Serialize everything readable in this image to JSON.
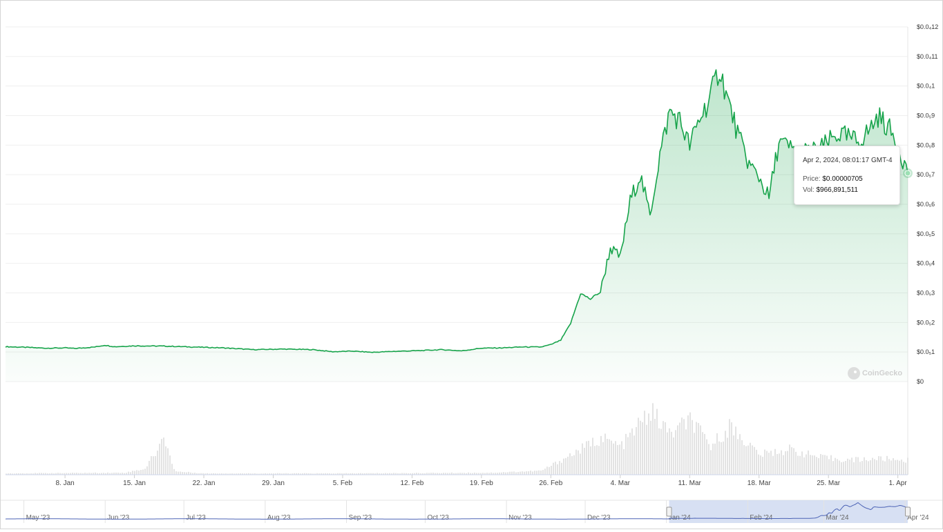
{
  "chart_data": {
    "type": "area",
    "y_axis": {
      "side": "right",
      "tick_labels": [
        "$0",
        "$0.0₅1",
        "$0.0₅2",
        "$0.0₅3",
        "$0.0₅4",
        "$0.0₅5",
        "$0.0₅6",
        "$0.0₅7",
        "$0.0₅8",
        "$0.0₅9",
        "$0.0₄1",
        "$0.0₄11",
        "$0.0₄12"
      ],
      "ylim": [
        0,
        1.2e-05
      ]
    },
    "x_axis": {
      "tick_labels": [
        "8. Jan",
        "15. Jan",
        "22. Jan",
        "29. Jan",
        "5. Feb",
        "12. Feb",
        "19. Feb",
        "26. Feb",
        "4. Mar",
        "11. Mar",
        "18. Mar",
        "25. Mar",
        "1. Apr"
      ],
      "range": [
        "2024-01-02",
        "2024-04-02"
      ]
    },
    "grid": true,
    "series": [
      {
        "values_unit": "USD",
        "points": [
          [
            "2024-01-02",
            1.18e-06
          ],
          [
            "2024-01-04",
            1.16e-06
          ],
          [
            "2024-01-06",
            1.13e-06
          ],
          [
            "2024-01-08",
            1.14e-06
          ],
          [
            "2024-01-09",
            1.12e-06
          ],
          [
            "2024-01-11",
            1.17e-06
          ],
          [
            "2024-01-12",
            1.23e-06
          ],
          [
            "2024-01-13",
            1.18e-06
          ],
          [
            "2024-01-15",
            1.21e-06
          ],
          [
            "2024-01-18",
            1.2e-06
          ],
          [
            "2024-01-21",
            1.17e-06
          ],
          [
            "2024-01-24",
            1.14e-06
          ],
          [
            "2024-01-27",
            1.08e-06
          ],
          [
            "2024-01-30",
            1.1e-06
          ],
          [
            "2024-02-02",
            1.08e-06
          ],
          [
            "2024-02-04",
            1.01e-06
          ],
          [
            "2024-02-06",
            1.03e-06
          ],
          [
            "2024-02-08",
            9.9e-07
          ],
          [
            "2024-02-10",
            1.02e-06
          ],
          [
            "2024-02-13",
            1.05e-06
          ],
          [
            "2024-02-15",
            1.08e-06
          ],
          [
            "2024-02-17",
            1.04e-06
          ],
          [
            "2024-02-19",
            1.13e-06
          ],
          [
            "2024-02-21",
            1.14e-06
          ],
          [
            "2024-02-23",
            1.17e-06
          ],
          [
            "2024-02-25",
            1.17e-06
          ],
          [
            "2024-02-26",
            1.25e-06
          ],
          [
            "2024-02-27",
            1.4e-06
          ],
          [
            "2024-02-28",
            1.97e-06
          ],
          [
            "2024-02-29",
            2.98e-06
          ],
          [
            "2024-03-01",
            2.79e-06
          ],
          [
            "2024-03-02",
            3.05e-06
          ],
          [
            "2024-03-03",
            4.52e-06
          ],
          [
            "2024-03-04",
            4.2e-06
          ],
          [
            "2024-03-05",
            6.1e-06
          ],
          [
            "2024-03-06",
            7e-06
          ],
          [
            "2024-03-07",
            5.62e-06
          ],
          [
            "2024-03-08",
            7.68e-06
          ],
          [
            "2024-03-09",
            9.15e-06
          ],
          [
            "2024-03-10",
            8.82e-06
          ],
          [
            "2024-03-11",
            7.98e-06
          ],
          [
            "2024-03-12",
            8.89e-06
          ],
          [
            "2024-03-13",
            9.55e-06
          ],
          [
            "2024-03-14",
            1.06e-05
          ],
          [
            "2024-03-15",
            9.35e-06
          ],
          [
            "2024-03-16",
            8.22e-06
          ],
          [
            "2024-03-17",
            7.35e-06
          ],
          [
            "2024-03-18",
            6.92e-06
          ],
          [
            "2024-03-19",
            6.21e-06
          ],
          [
            "2024-03-20",
            8.12e-06
          ],
          [
            "2024-03-21",
            7.92e-06
          ],
          [
            "2024-03-22",
            7.75e-06
          ],
          [
            "2024-03-24",
            7.82e-06
          ],
          [
            "2024-03-26",
            8.38e-06
          ],
          [
            "2024-03-28",
            8.12e-06
          ],
          [
            "2024-03-29",
            8.46e-06
          ],
          [
            "2024-03-30",
            8.98e-06
          ],
          [
            "2024-03-31",
            8.62e-06
          ],
          [
            "2024-04-01",
            8.02e-06
          ],
          [
            "2024-04-02",
            7.05e-06
          ]
        ]
      }
    ],
    "volume": {
      "points": [
        [
          "2024-01-02",
          0.02
        ],
        [
          "2024-01-14",
          0.03
        ],
        [
          "2024-01-16",
          0.09
        ],
        [
          "2024-01-18",
          0.55
        ],
        [
          "2024-01-19",
          0.05
        ],
        [
          "2024-01-22",
          0.02
        ],
        [
          "2024-02-05",
          0.02
        ],
        [
          "2024-02-20",
          0.03
        ],
        [
          "2024-02-25",
          0.06
        ],
        [
          "2024-02-28",
          0.3
        ],
        [
          "2024-03-02",
          0.55
        ],
        [
          "2024-03-04",
          0.42
        ],
        [
          "2024-03-07",
          0.95
        ],
        [
          "2024-03-09",
          0.6
        ],
        [
          "2024-03-11",
          0.82
        ],
        [
          "2024-03-13",
          0.42
        ],
        [
          "2024-03-15",
          0.72
        ],
        [
          "2024-03-18",
          0.3
        ],
        [
          "2024-03-21",
          0.38
        ],
        [
          "2024-03-24",
          0.26
        ],
        [
          "2024-03-27",
          0.22
        ],
        [
          "2024-03-30",
          0.24
        ],
        [
          "2024-04-02",
          0.22
        ]
      ]
    },
    "navigator": {
      "tick_labels": [
        "May '23",
        "Jun '23",
        "Jul '23",
        "Aug '23",
        "Sep '23",
        "Oct '23",
        "Nov '23",
        "Dec '23",
        "Jan '24",
        "Feb '24",
        "Mar '24",
        "Apr '24"
      ],
      "selected_range": [
        "2024-01-02",
        "2024-04-02"
      ]
    },
    "colors": {
      "line": "#16a34a",
      "area_top": "#16a34a",
      "volume": "#e3e3e3",
      "navigator_selection": "#cdd8f0",
      "navigator_line": "#4b62b5"
    }
  },
  "tooltip": {
    "date": "Apr 2, 2024, 08:01:17 GMT-4",
    "price_label": "Price:",
    "price_value": "$0.00000705",
    "vol_label": "Vol:",
    "vol_value": "$966,891,511"
  },
  "watermark": "CoinGecko"
}
